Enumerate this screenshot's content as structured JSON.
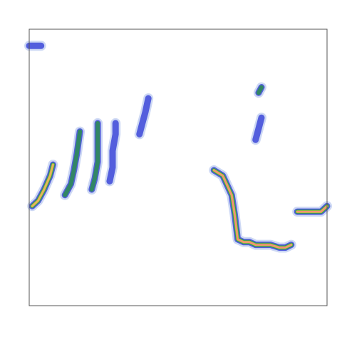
{
  "chart_data": {
    "type": "heatmap",
    "title": "",
    "xlabel": "",
    "ylabel": "",
    "xlim": [
      0,
      1
    ],
    "ylim": [
      0,
      1
    ],
    "grid": false,
    "legend": "none",
    "colors": {
      "low": "#2a35d6",
      "low_mid": "#6f8fe0",
      "mid": "#2e8b57",
      "mid_high": "#9acd32",
      "high": "#f0b060",
      "peak": "#ff7f7f",
      "frame": "#555555"
    },
    "features": [
      {
        "name": "ridge-1",
        "level": "high",
        "points": [
          [
            0.01,
            0.36
          ],
          [
            0.03,
            0.38
          ],
          [
            0.05,
            0.42
          ],
          [
            0.07,
            0.47
          ],
          [
            0.08,
            0.51
          ]
        ]
      },
      {
        "name": "ridge-2",
        "level": "mid",
        "points": [
          [
            0.12,
            0.4
          ],
          [
            0.14,
            0.44
          ],
          [
            0.15,
            0.49
          ],
          [
            0.16,
            0.55
          ],
          [
            0.17,
            0.63
          ]
        ]
      },
      {
        "name": "ridge-3",
        "level": "mid",
        "points": [
          [
            0.21,
            0.42
          ],
          [
            0.22,
            0.46
          ],
          [
            0.23,
            0.52
          ],
          [
            0.23,
            0.58
          ],
          [
            0.23,
            0.66
          ]
        ]
      },
      {
        "name": "ridge-4",
        "level": "low",
        "points": [
          [
            0.27,
            0.45
          ],
          [
            0.28,
            0.5
          ],
          [
            0.28,
            0.56
          ],
          [
            0.29,
            0.62
          ],
          [
            0.29,
            0.66
          ]
        ]
      },
      {
        "name": "ridge-5",
        "level": "low",
        "points": [
          [
            0.37,
            0.62
          ],
          [
            0.38,
            0.66
          ],
          [
            0.39,
            0.7
          ],
          [
            0.4,
            0.75
          ]
        ]
      },
      {
        "name": "ridge-6",
        "level": "peak",
        "points": [
          [
            0.62,
            0.49
          ],
          [
            0.65,
            0.47
          ],
          [
            0.68,
            0.4
          ],
          [
            0.69,
            0.33
          ],
          [
            0.7,
            0.24
          ],
          [
            0.72,
            0.23
          ],
          [
            0.74,
            0.23
          ],
          [
            0.76,
            0.22
          ],
          [
            0.79,
            0.22
          ],
          [
            0.81,
            0.22
          ],
          [
            0.84,
            0.21
          ],
          [
            0.86,
            0.21
          ],
          [
            0.88,
            0.22
          ]
        ]
      },
      {
        "name": "ridge-7",
        "level": "peak",
        "points": [
          [
            0.9,
            0.34
          ],
          [
            0.92,
            0.34
          ],
          [
            0.94,
            0.34
          ],
          [
            0.96,
            0.34
          ],
          [
            0.98,
            0.34
          ],
          [
            1.0,
            0.36
          ]
        ]
      },
      {
        "name": "ridge-8",
        "level": "low",
        "points": [
          [
            0.76,
            0.6
          ],
          [
            0.77,
            0.64
          ],
          [
            0.78,
            0.68
          ]
        ]
      },
      {
        "name": "ridge-9",
        "level": "mid",
        "points": [
          [
            0.77,
            0.77
          ],
          [
            0.78,
            0.79
          ]
        ]
      },
      {
        "name": "ridge-10",
        "level": "low",
        "points": [
          [
            0.0,
            0.94
          ],
          [
            0.02,
            0.94
          ],
          [
            0.04,
            0.94
          ]
        ]
      }
    ]
  }
}
